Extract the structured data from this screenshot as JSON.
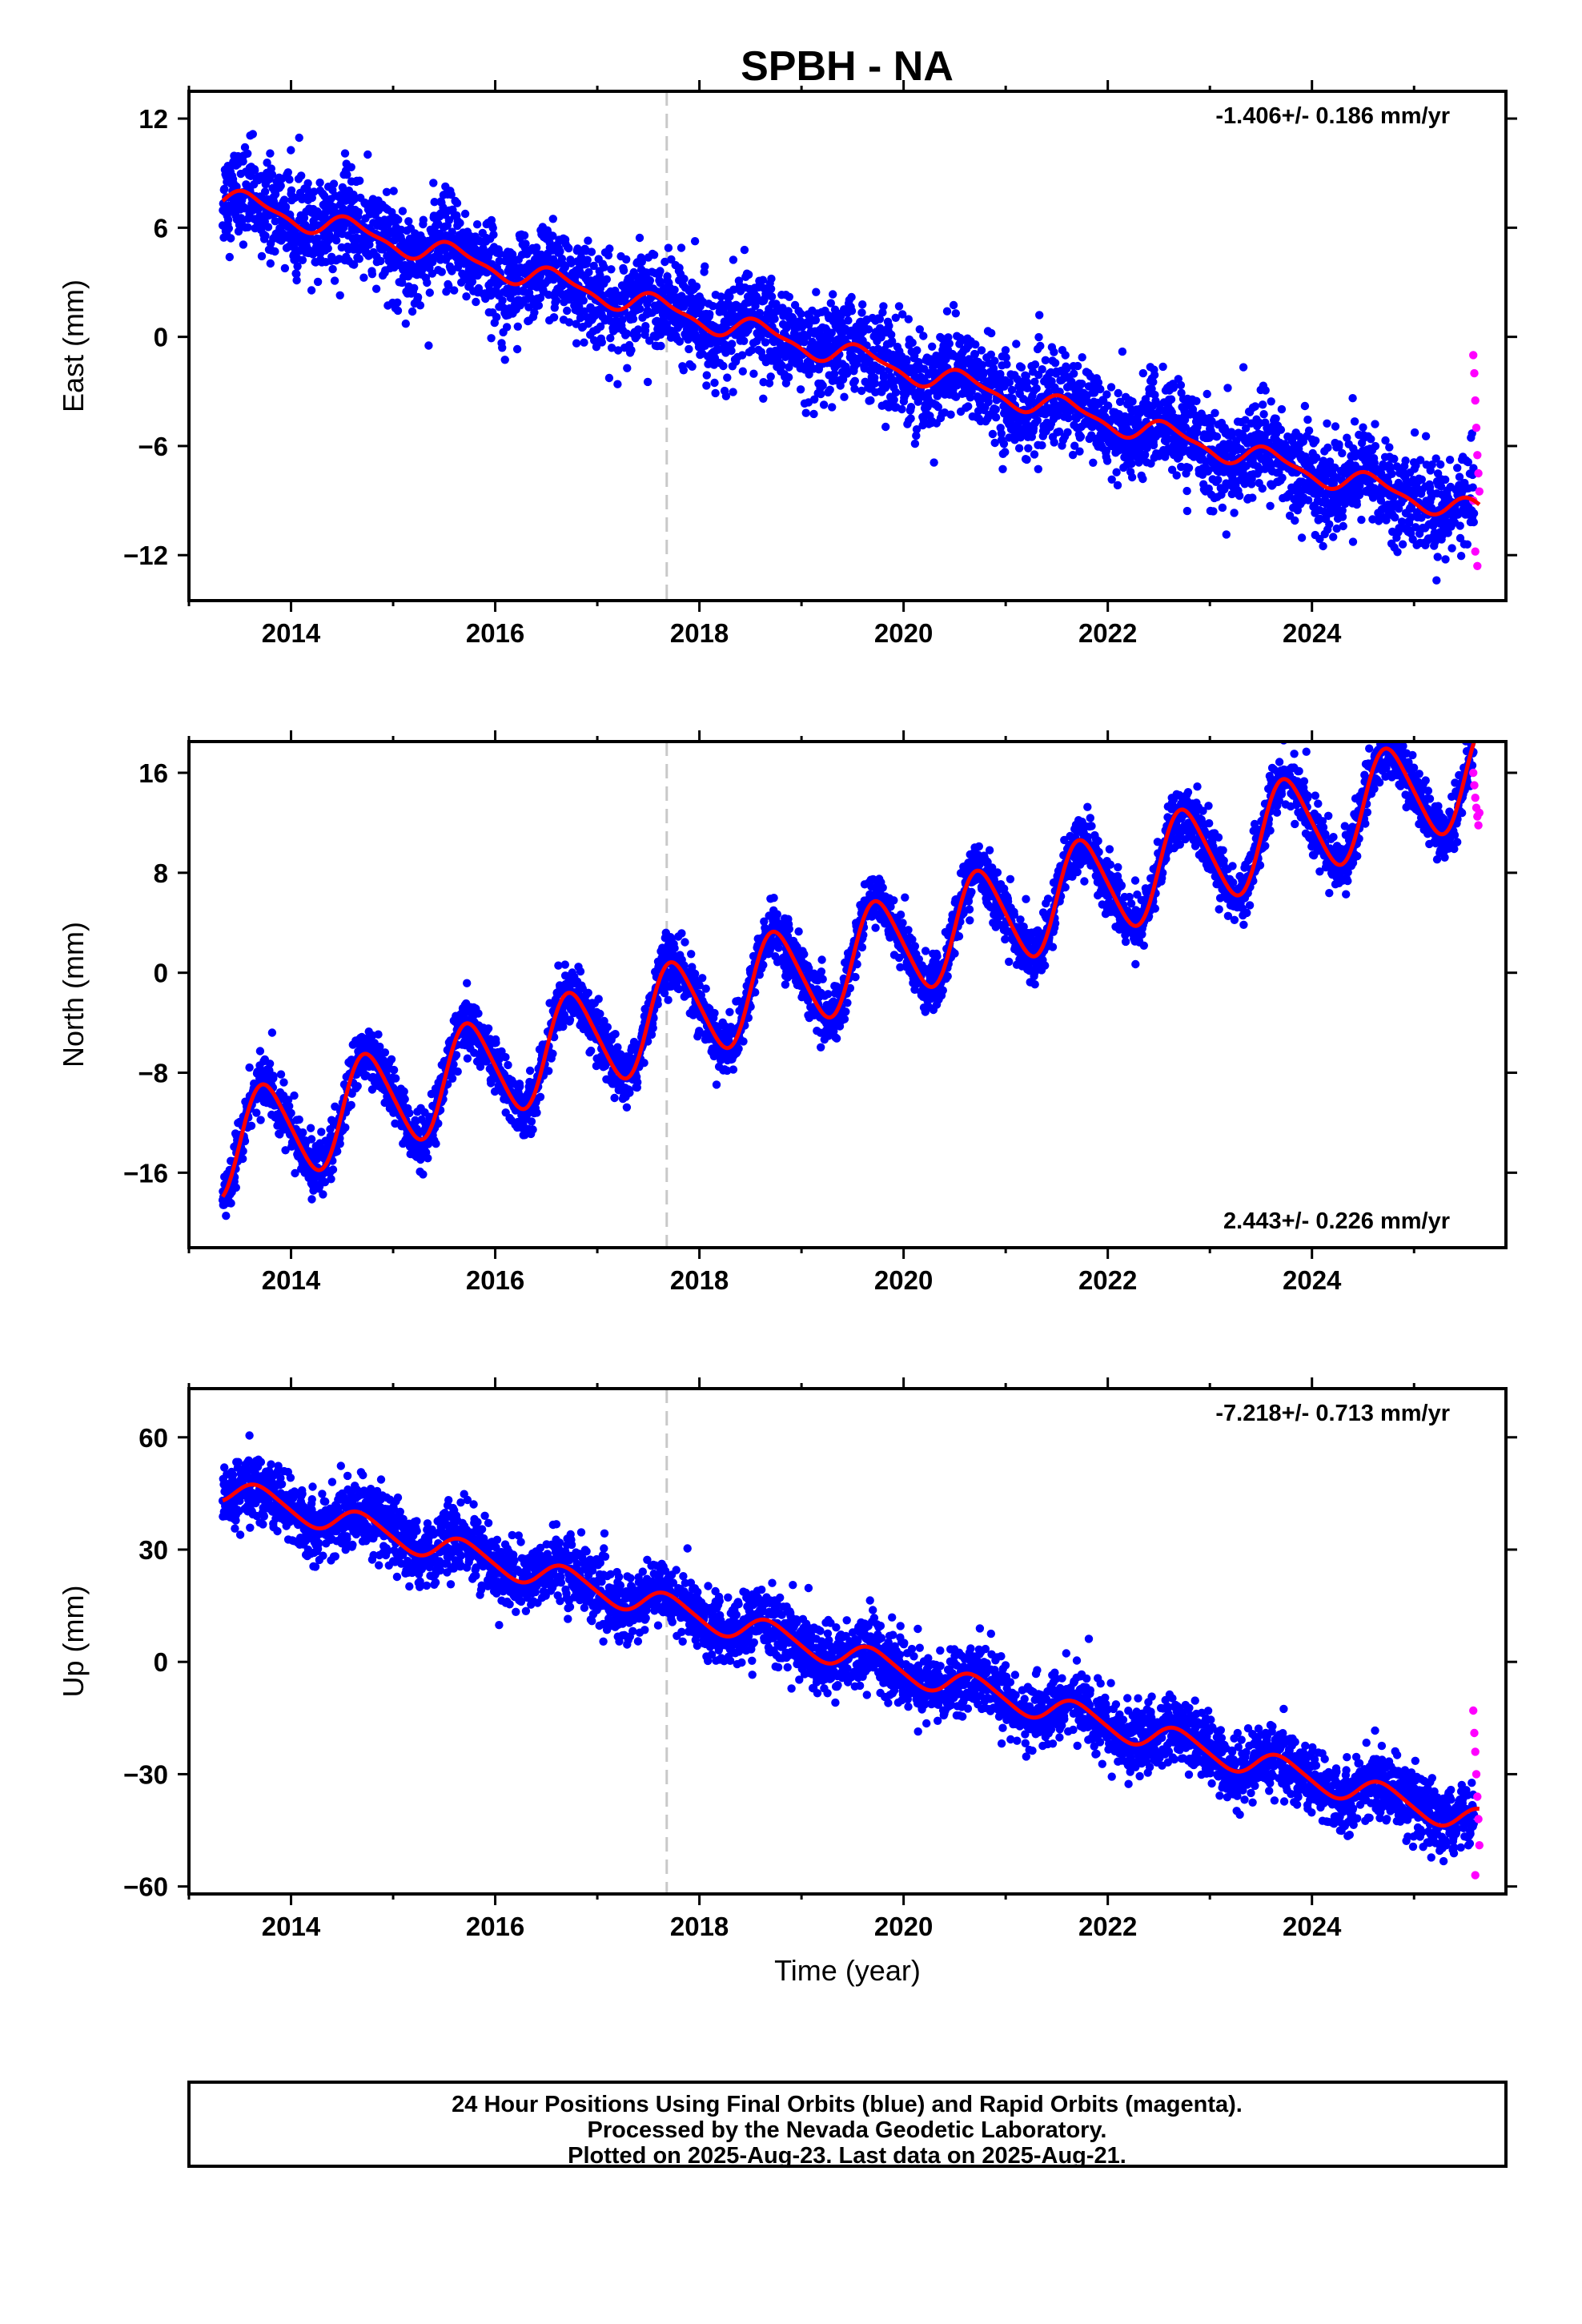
{
  "title": "SPBH - NA",
  "xlabel": "Time (year)",
  "colors": {
    "final": "#0000ff",
    "rapid": "#ff00ff",
    "model": "#ff0000",
    "marker": "#c8c8c8",
    "frame": "#000000"
  },
  "footer": {
    "line1": "24 Hour Positions Using Final Orbits (blue) and Rapid Orbits (magenta).",
    "line2": "Processed by the Nevada Geodetic Laboratory.",
    "line3": "Plotted on 2025-Aug-23. Last data on 2025-Aug-21."
  },
  "chart_data": [
    {
      "type": "scatter",
      "component": "east",
      "ylabel": "East (mm)",
      "rate_text": "-1.406+/- 0.186 mm/yr",
      "rate_position": "top-right",
      "xlim": [
        2013.0,
        2025.9
      ],
      "ylim": [
        -14.5,
        13.5
      ],
      "xticks": [
        2014,
        2016,
        2018,
        2020,
        2022,
        2024
      ],
      "yticks": [
        -12,
        -6,
        0,
        6,
        12
      ],
      "marker_line_x": 2017.68,
      "data_start": 2013.33,
      "data_end": 2025.64,
      "model": {
        "value_at_start": 7.6,
        "rate_mm_per_yr": -1.406,
        "annual_amp": 0.6,
        "annual_phase_yr": 0.35,
        "semiannual_amp": 0.2,
        "scatter_mm": 1.3
      },
      "rapid": [
        [
          2025.58,
          -1.0
        ],
        [
          2025.59,
          -2.0
        ],
        [
          2025.6,
          -3.5
        ],
        [
          2025.61,
          -5.0
        ],
        [
          2025.62,
          -6.5
        ],
        [
          2025.63,
          -7.5
        ],
        [
          2025.64,
          -8.5
        ],
        [
          2025.6,
          -11.8
        ],
        [
          2025.62,
          -12.6
        ],
        [
          2025.58,
          -9.0
        ]
      ]
    },
    {
      "type": "scatter",
      "component": "north",
      "ylabel": "North (mm)",
      "rate_text": "2.443+/- 0.226 mm/yr",
      "rate_position": "bottom-right",
      "xlim": [
        2013.0,
        2025.9
      ],
      "ylim": [
        -22,
        18.5
      ],
      "xticks": [
        2014,
        2016,
        2018,
        2020,
        2022,
        2024
      ],
      "yticks": [
        -16,
        -8,
        0,
        8,
        16
      ],
      "marker_line_x": 2017.68,
      "data_start": 2013.33,
      "data_end": 2025.64,
      "model": {
        "value_at_start": -14.0,
        "rate_mm_per_yr": 2.443,
        "annual_amp": 4.0,
        "annual_phase_yr": 0.5,
        "semiannual_amp": 0.5,
        "scatter_mm": 1.1
      },
      "rapid": [
        [
          2025.58,
          16.0
        ],
        [
          2025.59,
          15.0
        ],
        [
          2025.6,
          14.0
        ],
        [
          2025.61,
          13.2
        ],
        [
          2025.62,
          12.5
        ],
        [
          2025.63,
          11.8
        ],
        [
          2025.64,
          12.8
        ]
      ]
    },
    {
      "type": "scatter",
      "component": "up",
      "ylabel": "Up (mm)",
      "rate_text": "-7.218+/- 0.713 mm/yr",
      "rate_position": "top-right",
      "xlim": [
        2013.0,
        2025.9
      ],
      "ylim": [
        -62,
        73
      ],
      "xticks": [
        2014,
        2016,
        2018,
        2020,
        2022,
        2024
      ],
      "yticks": [
        -60,
        -30,
        0,
        30,
        60
      ],
      "marker_line_x": 2017.68,
      "data_start": 2013.33,
      "data_end": 2025.64,
      "model": {
        "value_at_start": 46,
        "rate_mm_per_yr": -7.218,
        "annual_amp": 3.5,
        "annual_phase_yr": 0.45,
        "semiannual_amp": 0.5,
        "scatter_mm": 4.5
      },
      "rapid": [
        [
          2025.58,
          -13.0
        ],
        [
          2025.59,
          -19.0
        ],
        [
          2025.6,
          -24.0
        ],
        [
          2025.61,
          -30.0
        ],
        [
          2025.62,
          -36.0
        ],
        [
          2025.63,
          -42.0
        ],
        [
          2025.64,
          -49.0
        ],
        [
          2025.6,
          -57.0
        ]
      ]
    }
  ]
}
